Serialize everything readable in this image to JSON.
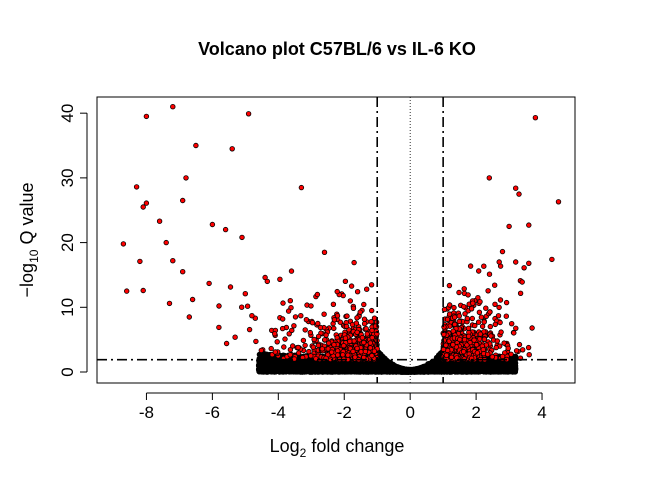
{
  "chart_data": {
    "type": "scatter",
    "title": "Volcano plot C57BL/6 vs IL-6 KO",
    "xlabel": {
      "base": "Log",
      "sub": "2",
      "rest": " fold change"
    },
    "ylabel": {
      "prefix": "−log",
      "sub": "10",
      "rest": " Q value"
    },
    "xlim": [
      -9.5,
      5.0
    ],
    "ylim": [
      -1.7,
      42.5
    ],
    "xticks": [
      -8,
      -6,
      -4,
      -2,
      0,
      2,
      4
    ],
    "xtick_labels": [
      "-8",
      "-6",
      "-4",
      "-2",
      "0",
      "2",
      "4"
    ],
    "yticks": [
      0,
      10,
      20,
      30,
      40
    ],
    "ytick_labels": [
      "0",
      "10",
      "20",
      "30",
      "40"
    ],
    "thresholds": {
      "fold_change": [
        -1,
        1
      ],
      "q_value": 1.9,
      "center": 0
    },
    "colors": {
      "significant": "#ff0000",
      "not_significant": "#000000",
      "point_edge": "#000000"
    },
    "highlighted_points": [
      {
        "x": -7.2,
        "y": 41.0
      },
      {
        "x": -8.0,
        "y": 39.5
      },
      {
        "x": -4.9,
        "y": 39.9
      },
      {
        "x": 3.8,
        "y": 39.3
      },
      {
        "x": -6.5,
        "y": 35.0
      },
      {
        "x": -5.4,
        "y": 34.5
      },
      {
        "x": -6.8,
        "y": 30.0
      },
      {
        "x": -8.3,
        "y": 28.6
      },
      {
        "x": -3.3,
        "y": 28.5
      },
      {
        "x": 2.4,
        "y": 30.0
      },
      {
        "x": 3.2,
        "y": 28.4
      },
      {
        "x": -6.9,
        "y": 26.5
      },
      {
        "x": -8.0,
        "y": 26.1
      },
      {
        "x": -8.1,
        "y": 25.5
      },
      {
        "x": 4.5,
        "y": 26.3
      },
      {
        "x": 3.3,
        "y": 27.5
      },
      {
        "x": -7.6,
        "y": 23.3
      },
      {
        "x": -6.0,
        "y": 22.8
      },
      {
        "x": -5.6,
        "y": 22.0
      },
      {
        "x": 3.6,
        "y": 22.7
      },
      {
        "x": 3.0,
        "y": 22.5
      },
      {
        "x": -8.7,
        "y": 19.8
      },
      {
        "x": -7.4,
        "y": 20.0
      },
      {
        "x": -5.1,
        "y": 20.8
      },
      {
        "x": -8.2,
        "y": 17.1
      },
      {
        "x": -8.1,
        "y": 12.6
      },
      {
        "x": -8.6,
        "y": 12.5
      },
      {
        "x": -7.2,
        "y": 17.2
      },
      {
        "x": -6.9,
        "y": 15.5
      },
      {
        "x": 4.3,
        "y": 17.4
      },
      {
        "x": 3.6,
        "y": 16.8
      },
      {
        "x": -6.1,
        "y": 13.7
      },
      {
        "x": -6.6,
        "y": 11.2
      },
      {
        "x": -7.3,
        "y": 10.6
      },
      {
        "x": -5.8,
        "y": 10.2
      },
      {
        "x": -5.0,
        "y": 12.1
      },
      {
        "x": -4.4,
        "y": 14.6
      },
      {
        "x": -3.6,
        "y": 15.6
      },
      {
        "x": -6.7,
        "y": 8.5
      },
      {
        "x": -4.8,
        "y": 8.7
      },
      {
        "x": -2.6,
        "y": 18.5
      },
      {
        "x": -1.7,
        "y": 16.9
      },
      {
        "x": 2.8,
        "y": 18.6
      },
      {
        "x": 2.7,
        "y": 17.0
      },
      {
        "x": 3.2,
        "y": 17.0
      }
    ],
    "significant_cloud": {
      "left": {
        "x_range": [
          -6.5,
          -1.0
        ],
        "y_range": [
          1.9,
          15.0
        ],
        "count": 700
      },
      "right": {
        "x_range": [
          1.0,
          3.9
        ],
        "y_range": [
          1.9,
          17.0
        ],
        "count": 650
      }
    },
    "nonsignificant_cloud": {
      "x_range": [
        -4.6,
        3.2
      ],
      "y_range": [
        0,
        6.5
      ],
      "count": 5000
    }
  }
}
